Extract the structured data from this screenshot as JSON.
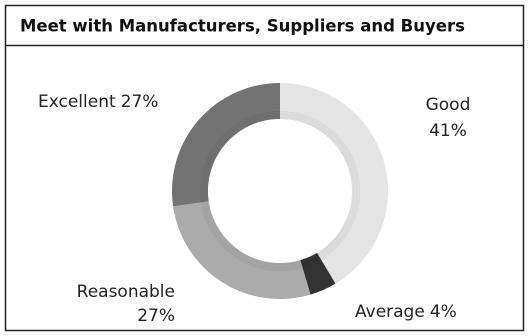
{
  "chart_data": {
    "type": "donut",
    "title": "Meet with Manufacturers, Suppliers and Buyers",
    "categories": [
      "Good",
      "Average",
      "Reasonable",
      "Excellent"
    ],
    "values": [
      41,
      4,
      27,
      27
    ],
    "value_labels": [
      "41%",
      "4%",
      "27%",
      "27%"
    ],
    "colors": [
      "#e4e4e4",
      "#333333",
      "#ababab",
      "#737373"
    ]
  }
}
